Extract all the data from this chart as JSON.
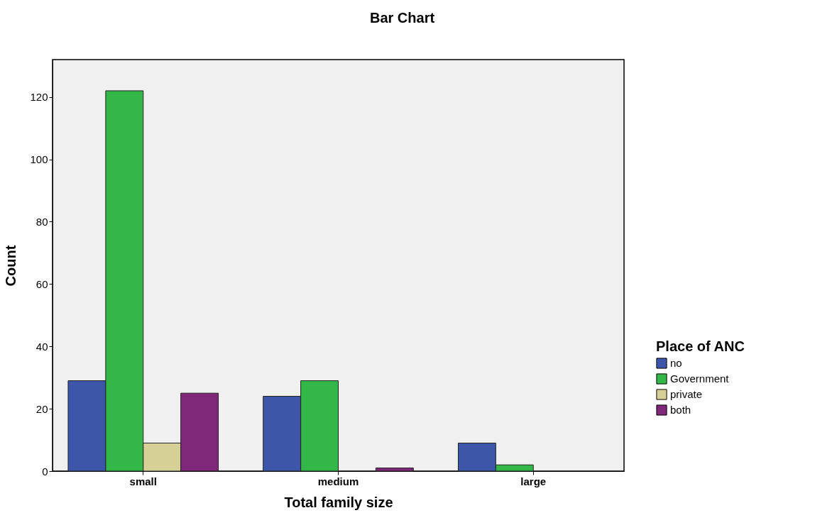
{
  "chart_data": {
    "type": "bar",
    "title": "Bar Chart",
    "xlabel": "Total family size",
    "ylabel": "Count",
    "legend_title": "Place of ANC",
    "categories": [
      "small",
      "medium",
      "large"
    ],
    "series": [
      {
        "name": "no",
        "color": "#3e56aa",
        "values": [
          29,
          24,
          9
        ]
      },
      {
        "name": "Government",
        "color": "#33b749",
        "values": [
          122,
          29,
          2
        ]
      },
      {
        "name": "private",
        "color": "#d6d097",
        "values": [
          9,
          null,
          null
        ]
      },
      {
        "name": "both",
        "color": "#7f2879",
        "values": [
          25,
          1,
          null
        ]
      }
    ],
    "ylim": [
      0,
      132
    ],
    "yticks": [
      0,
      20,
      40,
      60,
      80,
      100,
      120
    ],
    "grid": false,
    "legend": "right"
  }
}
